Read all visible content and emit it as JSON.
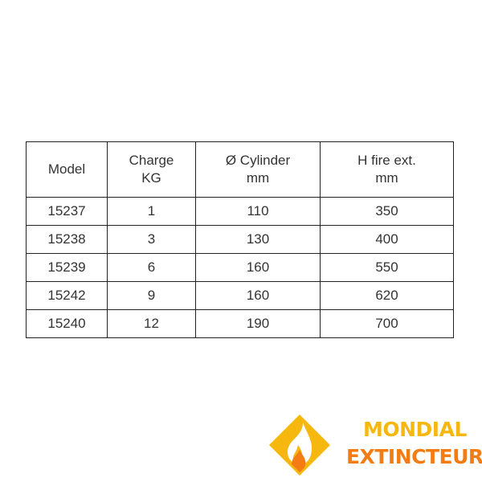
{
  "table": {
    "headers": [
      {
        "line1": "Model",
        "line2": ""
      },
      {
        "line1": "Charge",
        "line2": "KG"
      },
      {
        "line1": "Ø Cylinder",
        "line2": "mm"
      },
      {
        "line1": "H fire ext.",
        "line2": "mm"
      }
    ],
    "rows": [
      [
        "15237",
        "1",
        "110",
        "350"
      ],
      [
        "15238",
        "3",
        "130",
        "400"
      ],
      [
        "15239",
        "6",
        "160",
        "550"
      ],
      [
        "15242",
        "9",
        "160",
        "620"
      ],
      [
        "15240",
        "12",
        "190",
        "700"
      ]
    ]
  },
  "logo": {
    "line1": "MONDIAL",
    "line2": "EXTINCTEUR",
    "colors": {
      "yellow": "#f6b70f",
      "orange": "#f47c14"
    }
  }
}
